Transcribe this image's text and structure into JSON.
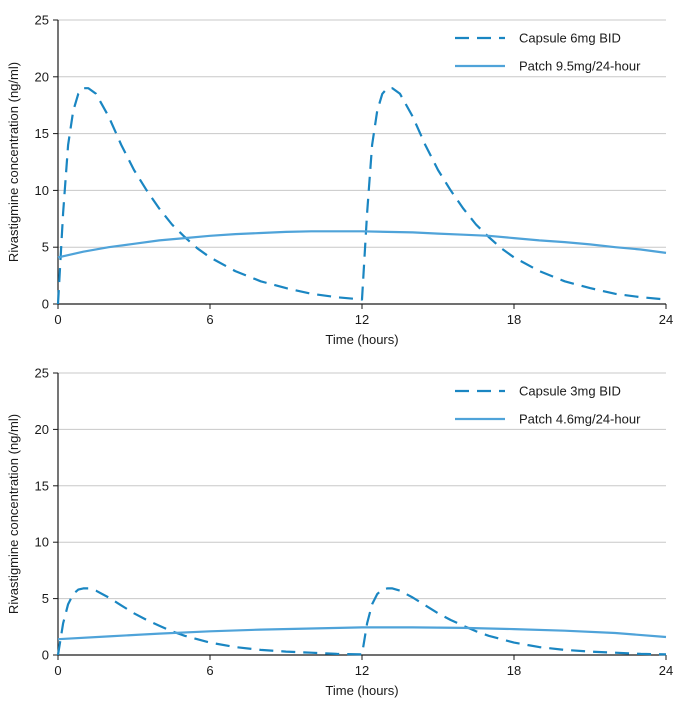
{
  "chart_data": [
    {
      "type": "line",
      "title": "",
      "xlabel": "Time (hours)",
      "ylabel": "Rivastigmine concentration (ng/ml)",
      "xlim": [
        0,
        24
      ],
      "ylim": [
        0,
        25
      ],
      "xticks": [
        0,
        6,
        12,
        18,
        24
      ],
      "yticks": [
        0,
        5,
        10,
        15,
        20,
        25
      ],
      "grid": "horizontal",
      "legend": "top-right",
      "series": [
        {
          "name": "Capsule 6mg BID",
          "style": "dashed",
          "color": "#1a86c2",
          "x": [
            0,
            0.2,
            0.4,
            0.6,
            0.8,
            1.0,
            1.2,
            1.5,
            2,
            2.5,
            3,
            3.5,
            4,
            4.5,
            5,
            5.5,
            6,
            7,
            8,
            9,
            10,
            11,
            12,
            12.2,
            12.4,
            12.6,
            12.8,
            13.0,
            13.2,
            13.5,
            14,
            14.5,
            15,
            15.5,
            16,
            16.5,
            17,
            17.5,
            18,
            19,
            20,
            21,
            22,
            23,
            24
          ],
          "y": [
            0,
            8,
            14,
            17,
            18.5,
            19,
            19,
            18.5,
            16.5,
            14,
            11.8,
            10,
            8.4,
            7.0,
            5.9,
            4.9,
            4.1,
            2.9,
            2.0,
            1.4,
            0.9,
            0.6,
            0.4,
            8,
            14,
            17,
            18.5,
            19,
            19,
            18.5,
            16.5,
            14,
            11.8,
            10,
            8.4,
            7.0,
            5.9,
            4.9,
            4.1,
            2.9,
            2.0,
            1.4,
            0.9,
            0.6,
            0.4
          ]
        },
        {
          "name": "Patch 9.5mg/24-hour",
          "style": "solid",
          "color": "#4fa3d9",
          "x": [
            0,
            1,
            2,
            3,
            4,
            5,
            6,
            7,
            8,
            9,
            10,
            11,
            12,
            13,
            14,
            15,
            16,
            17,
            18,
            19,
            20,
            21,
            22,
            23,
            24
          ],
          "y": [
            4.1,
            4.6,
            5.0,
            5.3,
            5.6,
            5.8,
            6.0,
            6.15,
            6.25,
            6.35,
            6.4,
            6.4,
            6.4,
            6.35,
            6.3,
            6.2,
            6.1,
            6.0,
            5.8,
            5.6,
            5.45,
            5.25,
            5.0,
            4.8,
            4.5
          ]
        }
      ]
    },
    {
      "type": "line",
      "title": "",
      "xlabel": "Time (hours)",
      "ylabel": "Rivastigmine concentration (ng/ml)",
      "xlim": [
        0,
        24
      ],
      "ylim": [
        0,
        25
      ],
      "xticks": [
        0,
        6,
        12,
        18,
        24
      ],
      "yticks": [
        0,
        5,
        10,
        15,
        20,
        25
      ],
      "grid": "horizontal",
      "legend": "top-right",
      "series": [
        {
          "name": "Capsule 3mg BID",
          "style": "dashed",
          "color": "#1a86c2",
          "x": [
            0,
            0.2,
            0.4,
            0.6,
            0.8,
            1.0,
            1.2,
            1.5,
            2,
            2.5,
            3,
            3.5,
            4,
            4.5,
            5,
            5.5,
            6,
            7,
            8,
            9,
            10,
            11,
            12,
            12.2,
            12.4,
            12.6,
            12.8,
            13.0,
            13.2,
            13.5,
            14,
            14.5,
            15,
            15.5,
            16,
            16.5,
            17,
            17.5,
            18,
            19,
            20,
            21,
            22,
            23,
            24
          ],
          "y": [
            0,
            2.8,
            4.5,
            5.4,
            5.8,
            5.9,
            5.9,
            5.7,
            5.1,
            4.4,
            3.7,
            3.1,
            2.6,
            2.1,
            1.7,
            1.4,
            1.1,
            0.7,
            0.45,
            0.3,
            0.2,
            0.1,
            0.05,
            2.8,
            4.5,
            5.4,
            5.8,
            5.9,
            5.9,
            5.7,
            5.1,
            4.4,
            3.7,
            3.1,
            2.6,
            2.1,
            1.7,
            1.4,
            1.1,
            0.7,
            0.45,
            0.3,
            0.2,
            0.1,
            0.05
          ]
        },
        {
          "name": "Patch 4.6mg/24-hour",
          "style": "solid",
          "color": "#4fa3d9",
          "x": [
            0,
            2,
            4,
            6,
            8,
            10,
            12,
            14,
            16,
            18,
            20,
            22,
            24
          ],
          "y": [
            1.4,
            1.65,
            1.9,
            2.1,
            2.25,
            2.35,
            2.45,
            2.45,
            2.4,
            2.3,
            2.15,
            1.95,
            1.6
          ]
        }
      ]
    }
  ]
}
